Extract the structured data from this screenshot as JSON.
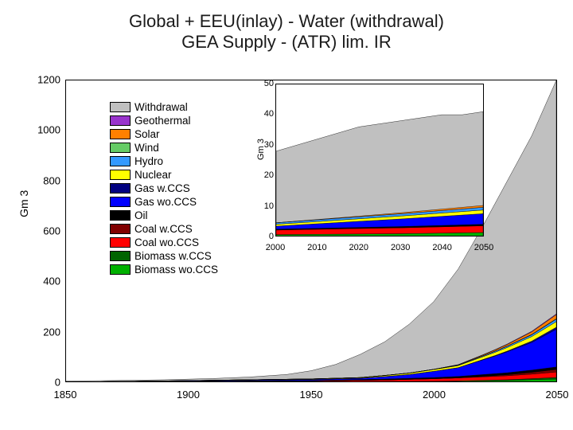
{
  "title_line1": "Global + EEU(inlay) - Water (withdrawal)",
  "title_line2": "GEA Supply - (ATR) lim. IR",
  "main": {
    "type": "stacked-area",
    "x_range": [
      1850,
      2050
    ],
    "y_range": [
      0,
      1200
    ],
    "x_ticks": [
      1850,
      1900,
      1950,
      2000,
      2050
    ],
    "y_ticks": [
      0,
      200,
      400,
      600,
      800,
      1000,
      1200
    ],
    "y_label": "Gm 3",
    "background": "#ffffff",
    "border_color": "#000000",
    "tick_fontsize": 13,
    "series": [
      {
        "name": "Withdrawal",
        "color": "#c0c0c0",
        "x": [
          1850,
          1870,
          1890,
          1910,
          1925,
          1940,
          1950,
          1960,
          1970,
          1980,
          1990,
          2000,
          2010,
          2020,
          2030,
          2040,
          2050
        ],
        "y": [
          4,
          6,
          9,
          14,
          20,
          30,
          45,
          70,
          110,
          160,
          230,
          320,
          450,
          620,
          800,
          980,
          1200
        ]
      },
      {
        "name": "Geothermal",
        "color": "#9933cc",
        "x": [
          1850,
          2000,
          2020,
          2050
        ],
        "y": [
          0,
          0,
          1,
          3
        ]
      },
      {
        "name": "Solar",
        "color": "#ff8000",
        "x": [
          1850,
          2000,
          2010,
          2020,
          2030,
          2040,
          2050
        ],
        "y": [
          0,
          0,
          1,
          3,
          6,
          10,
          16
        ]
      },
      {
        "name": "Wind",
        "color": "#66cc66",
        "x": [
          1850,
          2000,
          2050
        ],
        "y": [
          0,
          0,
          2
        ]
      },
      {
        "name": "Hydro",
        "color": "#3399ff",
        "x": [
          1850,
          2000,
          2010,
          2020,
          2030,
          2040,
          2050
        ],
        "y": [
          0,
          1,
          2,
          3,
          5,
          7,
          10
        ]
      },
      {
        "name": "Nuclear",
        "color": "#ffff00",
        "x": [
          1850,
          1970,
          1990,
          2010,
          2030,
          2050
        ],
        "y": [
          0,
          2,
          5,
          8,
          14,
          22
        ]
      },
      {
        "name": "Gas w.CCS",
        "color": "#000080",
        "x": [
          1850,
          2010,
          2030,
          2050
        ],
        "y": [
          0,
          0,
          3,
          8
        ]
      },
      {
        "name": "Gas wo.CCS",
        "color": "#0000ff",
        "x": [
          1850,
          1970,
          1990,
          2010,
          2025,
          2040,
          2050
        ],
        "y": [
          0,
          5,
          15,
          35,
          70,
          110,
          150
        ]
      },
      {
        "name": "Oil",
        "color": "#000000",
        "x": [
          1850,
          1950,
          2000,
          2050
        ],
        "y": [
          0,
          2,
          5,
          10
        ]
      },
      {
        "name": "Coal w.CCS",
        "color": "#800000",
        "x": [
          1850,
          2010,
          2030,
          2050
        ],
        "y": [
          0,
          0,
          4,
          10
        ]
      },
      {
        "name": "Coal wo.CCS",
        "color": "#ff0000",
        "x": [
          1850,
          1900,
          1950,
          1980,
          2000,
          2020,
          2040,
          2050
        ],
        "y": [
          0,
          1,
          3,
          6,
          10,
          14,
          18,
          22
        ]
      },
      {
        "name": "Biomass w.CCS",
        "color": "#006400",
        "x": [
          1850,
          2010,
          2030,
          2050
        ],
        "y": [
          0,
          0,
          2,
          6
        ]
      },
      {
        "name": "Biomass wo.CCS",
        "color": "#00b000",
        "x": [
          1850,
          1950,
          2000,
          2030,
          2050
        ],
        "y": [
          0,
          1,
          3,
          7,
          12
        ]
      }
    ]
  },
  "inset": {
    "type": "stacked-area",
    "x_range": [
      2000,
      2050
    ],
    "y_range": [
      0,
      50
    ],
    "x_ticks": [
      2000,
      2010,
      2020,
      2030,
      2040,
      2050
    ],
    "y_ticks": [
      0,
      10,
      20,
      30,
      40,
      50
    ],
    "y_label": "Gm 3",
    "series": [
      {
        "name": "Withdrawal",
        "color": "#c0c0c0",
        "x": [
          2000,
          2005,
          2010,
          2015,
          2020,
          2025,
          2030,
          2035,
          2040,
          2045,
          2050
        ],
        "y": [
          28,
          30,
          32,
          34,
          36,
          37,
          38,
          39,
          40,
          40,
          41
        ]
      },
      {
        "name": "Solar",
        "color": "#ff8000",
        "x": [
          2000,
          2020,
          2050
        ],
        "y": [
          0,
          0.2,
          0.6
        ]
      },
      {
        "name": "Hydro",
        "color": "#3399ff",
        "x": [
          2000,
          2050
        ],
        "y": [
          0.5,
          0.9
        ]
      },
      {
        "name": "Nuclear",
        "color": "#ffff00",
        "x": [
          2000,
          2050
        ],
        "y": [
          0.6,
          1.2
        ]
      },
      {
        "name": "Gas wo.CCS",
        "color": "#0000ff",
        "x": [
          2000,
          2010,
          2030,
          2050
        ],
        "y": [
          1.0,
          1.5,
          2.5,
          3.5
        ]
      },
      {
        "name": "Oil",
        "color": "#000000",
        "x": [
          2000,
          2050
        ],
        "y": [
          0.3,
          0.5
        ]
      },
      {
        "name": "Coal wo.CCS",
        "color": "#ff0000",
        "x": [
          2000,
          2020,
          2050
        ],
        "y": [
          1.5,
          1.8,
          2.2
        ]
      },
      {
        "name": "Biomass wo.CCS",
        "color": "#00b000",
        "x": [
          2000,
          2030,
          2050
        ],
        "y": [
          0.5,
          0.8,
          1.2
        ]
      }
    ]
  },
  "legend": {
    "items": [
      {
        "label": "Withdrawal",
        "color": "#c0c0c0"
      },
      {
        "label": "Geothermal",
        "color": "#9933cc"
      },
      {
        "label": "Solar",
        "color": "#ff8000"
      },
      {
        "label": "Wind",
        "color": "#66cc66"
      },
      {
        "label": "Hydro",
        "color": "#3399ff"
      },
      {
        "label": "Nuclear",
        "color": "#ffff00"
      },
      {
        "label": "Gas w.CCS",
        "color": "#000080"
      },
      {
        "label": "Gas wo.CCS",
        "color": "#0000ff"
      },
      {
        "label": "Oil",
        "color": "#000000"
      },
      {
        "label": "Coal w.CCS",
        "color": "#800000"
      },
      {
        "label": "Coal wo.CCS",
        "color": "#ff0000"
      },
      {
        "label": "Biomass w.CCS",
        "color": "#006400"
      },
      {
        "label": "Biomass wo.CCS",
        "color": "#00b000"
      }
    ]
  }
}
